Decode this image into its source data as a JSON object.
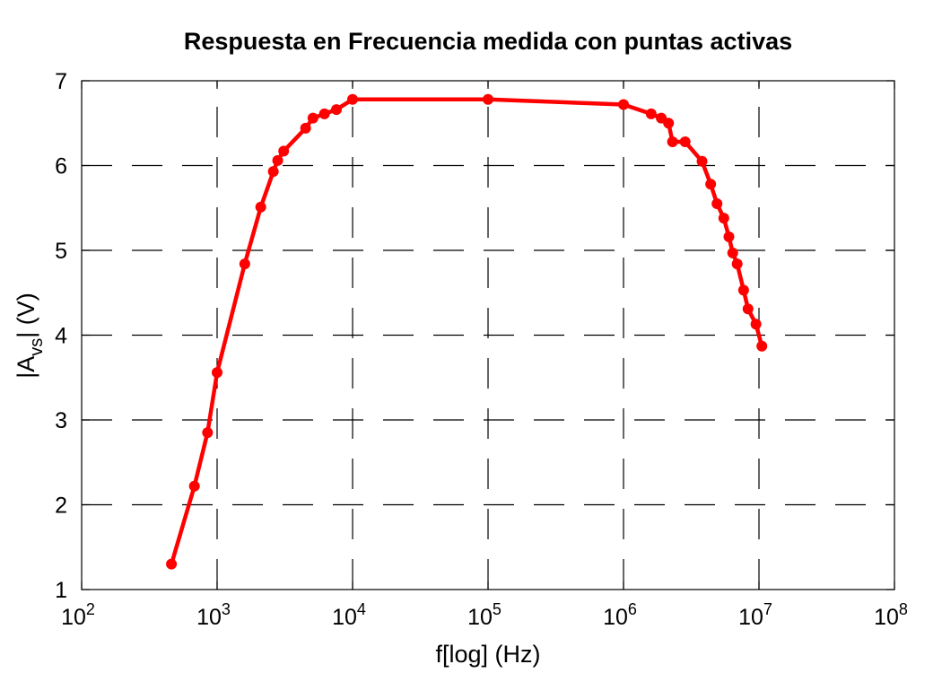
{
  "chart_data": {
    "type": "line",
    "title": "Respuesta en Frecuencia medida con puntas activas",
    "xlabel": "f[log] (Hz)",
    "ylabel_main": "|A",
    "ylabel_sub": "vs",
    "ylabel_tail": "| (V)",
    "x_scale": "log",
    "xlim": [
      100,
      100000000
    ],
    "ylim": [
      1,
      7
    ],
    "grid": true,
    "x_ticks": [
      {
        "base": "10",
        "exp": "2",
        "value": 100
      },
      {
        "base": "10",
        "exp": "3",
        "value": 1000
      },
      {
        "base": "10",
        "exp": "4",
        "value": 10000
      },
      {
        "base": "10",
        "exp": "5",
        "value": 100000
      },
      {
        "base": "10",
        "exp": "6",
        "value": 1000000
      },
      {
        "base": "10",
        "exp": "7",
        "value": 10000000
      },
      {
        "base": "10",
        "exp": "8",
        "value": 100000000
      }
    ],
    "y_ticks": [
      "1",
      "2",
      "3",
      "4",
      "5",
      "6",
      "7"
    ],
    "line_color": "#ff0000",
    "series": [
      {
        "x": [
          460,
          680,
          850,
          1000,
          1600,
          2100,
          2600,
          2800,
          3100,
          4500,
          5100,
          6200,
          7600,
          10000,
          100000,
          1000000,
          1600000,
          1900000,
          2150000,
          2300000,
          2850000,
          3800000,
          4400000,
          4900000,
          5500000,
          6000000,
          6400000,
          6900000,
          7700000,
          8300000,
          9500000,
          10500000
        ],
        "y": [
          1.3,
          2.22,
          2.85,
          3.56,
          4.84,
          5.51,
          5.93,
          6.06,
          6.17,
          6.44,
          6.56,
          6.61,
          6.66,
          6.78,
          6.78,
          6.72,
          6.61,
          6.56,
          6.5,
          6.28,
          6.28,
          6.05,
          5.78,
          5.55,
          5.38,
          5.16,
          4.97,
          4.84,
          4.53,
          4.31,
          4.13,
          3.87
        ]
      }
    ]
  }
}
